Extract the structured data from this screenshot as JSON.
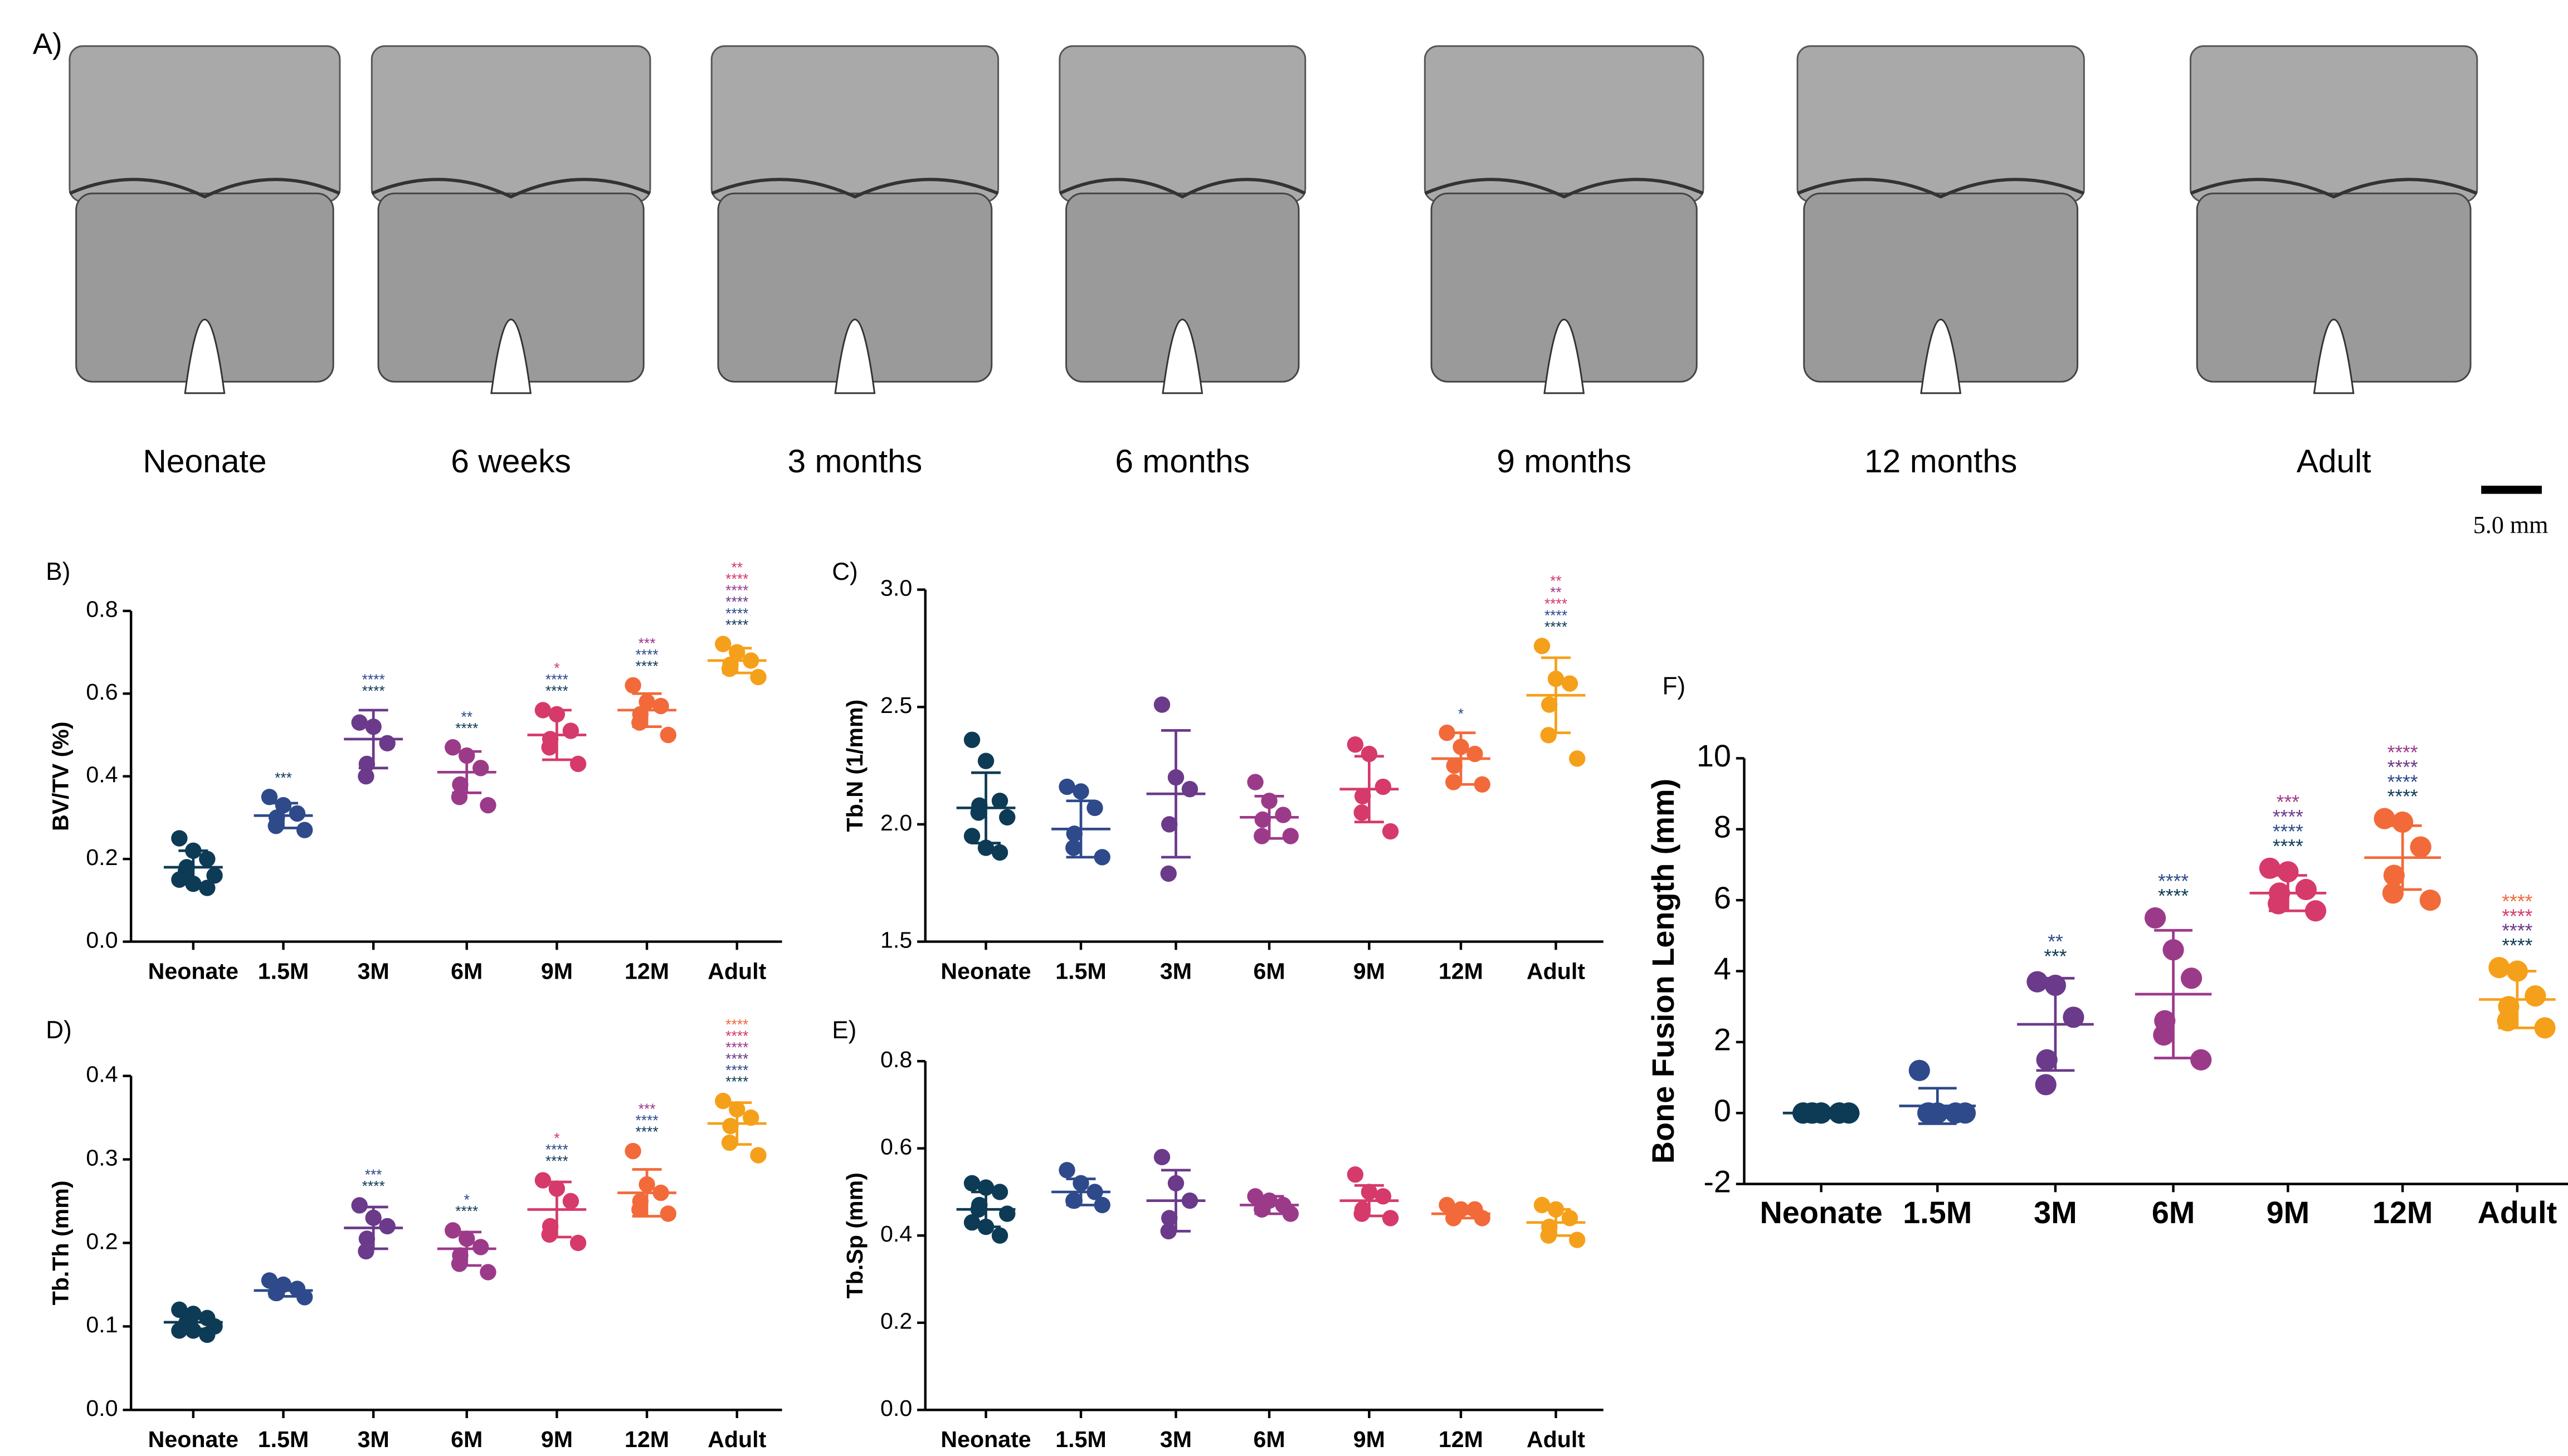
{
  "figure_a": {
    "label": "A)",
    "captions": [
      "Neonate",
      "6 weeks",
      "3 months",
      "6 months",
      "9 months",
      "12 months",
      "Adult"
    ],
    "scale_bar": "5.0 mm"
  },
  "chart_data": [
    {
      "type": "dotplot",
      "label": "B)",
      "y_label": "BV/TV (%)",
      "categories": [
        "Neonate",
        "1.5M",
        "3M",
        "6M",
        "9M",
        "12M",
        "Adult"
      ],
      "colors": [
        "#0d3b55",
        "#2e4a8a",
        "#6b3a8a",
        "#9c3a8a",
        "#d63a6a",
        "#f26a3a",
        "#f5a01a"
      ],
      "ylim": [
        0,
        0.8
      ],
      "yticks": [
        {
          "value": 0,
          "label": "0.0"
        },
        0.2,
        0.4,
        0.6,
        0.8
      ],
      "points": [
        [
          0.25,
          0.22,
          0.2,
          0.18,
          0.17,
          0.16,
          0.15,
          0.14,
          0.13
        ],
        [
          0.35,
          0.33,
          0.31,
          0.3,
          0.28,
          0.27
        ],
        [
          0.53,
          0.52,
          0.48,
          0.43,
          0.4
        ],
        [
          0.47,
          0.45,
          0.42,
          0.38,
          0.35,
          0.33
        ],
        [
          0.56,
          0.55,
          0.51,
          0.49,
          0.47,
          0.43
        ],
        [
          0.62,
          0.58,
          0.57,
          0.55,
          0.53,
          0.5
        ],
        [
          0.72,
          0.7,
          0.68,
          0.67,
          0.66,
          0.64
        ]
      ],
      "means": [
        0.18,
        0.305,
        0.49,
        0.41,
        0.5,
        0.56,
        0.68
      ],
      "sds": [
        0.04,
        0.03,
        0.07,
        0.05,
        0.06,
        0.04,
        0.03
      ],
      "annotations": [
        [],
        [
          {
            "text": "***",
            "color": "#0d3b55"
          }
        ],
        [
          {
            "text": "****",
            "color": "#2e4a8a"
          },
          {
            "text": "****",
            "color": "#0d3b55"
          }
        ],
        [
          {
            "text": "**",
            "color": "#2e4a8a"
          },
          {
            "text": "****",
            "color": "#0d3b55"
          }
        ],
        [
          {
            "text": "*",
            "color": "#d63a6a"
          },
          {
            "text": "****",
            "color": "#2e4a8a"
          },
          {
            "text": "****",
            "color": "#0d3b55"
          }
        ],
        [
          {
            "text": "***",
            "color": "#9c3a8a"
          },
          {
            "text": "****",
            "color": "#2e4a8a"
          },
          {
            "text": "****",
            "color": "#0d3b55"
          }
        ],
        [
          {
            "text": "**",
            "color": "#d63a6a"
          },
          {
            "text": "****",
            "color": "#d63a6a"
          },
          {
            "text": "****",
            "color": "#9c3a8a"
          },
          {
            "text": "****",
            "color": "#6b3a8a"
          },
          {
            "text": "****",
            "color": "#2e4a8a"
          },
          {
            "text": "****",
            "color": "#0d3b55"
          }
        ]
      ]
    },
    {
      "type": "dotplot",
      "label": "C)",
      "y_label": "Tb.N (1/mm)",
      "categories": [
        "Neonate",
        "1.5M",
        "3M",
        "6M",
        "9M",
        "12M",
        "Adult"
      ],
      "colors": [
        "#0d3b55",
        "#2e4a8a",
        "#6b3a8a",
        "#9c3a8a",
        "#d63a6a",
        "#f26a3a",
        "#f5a01a"
      ],
      "ylim": [
        1.5,
        3.0
      ],
      "yticks": [
        1.5,
        {
          "value": 2,
          "label": "2.0"
        },
        2.5,
        {
          "value": 3,
          "label": "3.0"
        }
      ],
      "points": [
        [
          2.36,
          2.27,
          2.1,
          2.08,
          2.05,
          2.03,
          1.95,
          1.9,
          1.88
        ],
        [
          2.16,
          2.14,
          2.07,
          1.96,
          1.9,
          1.86
        ],
        [
          2.51,
          2.2,
          2.15,
          2.0,
          1.79
        ],
        [
          2.18,
          2.1,
          2.04,
          2.02,
          1.95,
          1.95
        ],
        [
          2.34,
          2.3,
          2.16,
          2.12,
          2.05,
          1.97
        ],
        [
          2.39,
          2.33,
          2.3,
          2.25,
          2.18,
          2.17
        ],
        [
          2.76,
          2.62,
          2.6,
          2.51,
          2.38,
          2.28
        ]
      ],
      "means": [
        2.07,
        1.98,
        2.13,
        2.03,
        2.15,
        2.28,
        2.55
      ],
      "sds": [
        0.15,
        0.12,
        0.27,
        0.09,
        0.14,
        0.11,
        0.16
      ],
      "annotations": [
        [],
        [],
        [],
        [],
        [],
        [
          {
            "text": "*",
            "color": "#2e4a8a"
          }
        ],
        [
          {
            "text": "**",
            "color": "#d63a6a"
          },
          {
            "text": "**",
            "color": "#9c3a8a"
          },
          {
            "text": "****",
            "color": "#d63a6a"
          },
          {
            "text": "****",
            "color": "#2e4a8a"
          },
          {
            "text": "****",
            "color": "#0d3b55"
          }
        ]
      ]
    },
    {
      "type": "dotplot",
      "label": "D)",
      "y_label": "Tb.Th (mm)",
      "categories": [
        "Neonate",
        "1.5M",
        "3M",
        "6M",
        "9M",
        "12M",
        "Adult"
      ],
      "colors": [
        "#0d3b55",
        "#2e4a8a",
        "#6b3a8a",
        "#9c3a8a",
        "#d63a6a",
        "#f26a3a",
        "#f5a01a"
      ],
      "ylim": [
        0,
        0.4
      ],
      "yticks": [
        {
          "value": 0,
          "label": "0.0"
        },
        0.1,
        0.2,
        0.3,
        0.4
      ],
      "points": [
        [
          0.12,
          0.115,
          0.11,
          0.105,
          0.1,
          0.1,
          0.095,
          0.095,
          0.09
        ],
        [
          0.155,
          0.15,
          0.145,
          0.14,
          0.14,
          0.135
        ],
        [
          0.245,
          0.23,
          0.22,
          0.205,
          0.19
        ],
        [
          0.215,
          0.205,
          0.195,
          0.185,
          0.175,
          0.165
        ],
        [
          0.275,
          0.265,
          0.25,
          0.22,
          0.21,
          0.2
        ],
        [
          0.31,
          0.27,
          0.26,
          0.25,
          0.24,
          0.235
        ],
        [
          0.37,
          0.36,
          0.35,
          0.34,
          0.32,
          0.305
        ]
      ],
      "means": [
        0.105,
        0.143,
        0.218,
        0.193,
        0.24,
        0.26,
        0.343
      ],
      "sds": [
        0.008,
        0.007,
        0.025,
        0.02,
        0.033,
        0.028,
        0.025
      ],
      "annotations": [
        [],
        [],
        [
          {
            "text": "***",
            "color": "#2e4a8a"
          },
          {
            "text": "****",
            "color": "#0d3b55"
          }
        ],
        [
          {
            "text": "*",
            "color": "#2e4a8a"
          },
          {
            "text": "****",
            "color": "#0d3b55"
          }
        ],
        [
          {
            "text": "*",
            "color": "#d63a6a"
          },
          {
            "text": "****",
            "color": "#2e4a8a"
          },
          {
            "text": "****",
            "color": "#0d3b55"
          }
        ],
        [
          {
            "text": "***",
            "color": "#9c3a8a"
          },
          {
            "text": "****",
            "color": "#2e4a8a"
          },
          {
            "text": "****",
            "color": "#0d3b55"
          }
        ],
        [
          {
            "text": "****",
            "color": "#f26a3a"
          },
          {
            "text": "****",
            "color": "#d63a6a"
          },
          {
            "text": "****",
            "color": "#9c3a8a"
          },
          {
            "text": "****",
            "color": "#6b3a8a"
          },
          {
            "text": "****",
            "color": "#2e4a8a"
          },
          {
            "text": "****",
            "color": "#0d3b55"
          }
        ]
      ]
    },
    {
      "type": "dotplot",
      "label": "E)",
      "y_label": "Tb.Sp (mm)",
      "categories": [
        "Neonate",
        "1.5M",
        "3M",
        "6M",
        "9M",
        "12M",
        "Adult"
      ],
      "colors": [
        "#0d3b55",
        "#2e4a8a",
        "#6b3a8a",
        "#9c3a8a",
        "#d63a6a",
        "#f26a3a",
        "#f5a01a"
      ],
      "ylim": [
        0,
        0.8
      ],
      "yticks": [
        {
          "value": 0,
          "label": "0.0"
        },
        0.2,
        0.4,
        0.6,
        0.8
      ],
      "points": [
        [
          0.52,
          0.51,
          0.5,
          0.47,
          0.46,
          0.45,
          0.43,
          0.42,
          0.4
        ],
        [
          0.55,
          0.52,
          0.5,
          0.48,
          0.48,
          0.47
        ],
        [
          0.58,
          0.52,
          0.48,
          0.44,
          0.41
        ],
        [
          0.49,
          0.48,
          0.47,
          0.47,
          0.46,
          0.45
        ],
        [
          0.54,
          0.5,
          0.49,
          0.46,
          0.45,
          0.44
        ],
        [
          0.47,
          0.46,
          0.46,
          0.45,
          0.44,
          0.44
        ],
        [
          0.47,
          0.46,
          0.44,
          0.42,
          0.4,
          0.39
        ]
      ],
      "means": [
        0.46,
        0.5,
        0.48,
        0.47,
        0.48,
        0.45,
        0.43
      ],
      "sds": [
        0.04,
        0.03,
        0.07,
        0.02,
        0.035,
        0.01,
        0.03
      ],
      "annotations": [
        [],
        [],
        [],
        [],
        [],
        [],
        []
      ]
    },
    {
      "type": "dotplot",
      "label": "F)",
      "y_label": "Bone Fusion Length (mm)",
      "categories": [
        "Neonate",
        "1.5M",
        "3M",
        "6M",
        "9M",
        "12M",
        "Adult"
      ],
      "colors": [
        "#0d3b55",
        "#2e4a8a",
        "#6b3a8a",
        "#9c3a8a",
        "#d63a6a",
        "#f26a3a",
        "#f5a01a"
      ],
      "ylim": [
        -2,
        10
      ],
      "yticks": [
        -2,
        0,
        2,
        4,
        6,
        8,
        10
      ],
      "points": [
        [
          0,
          0,
          0,
          0,
          0,
          0,
          0,
          0,
          0
        ],
        [
          1.2,
          0,
          0,
          0,
          0,
          0
        ],
        [
          3.7,
          3.6,
          2.7,
          1.5,
          0.8
        ],
        [
          5.5,
          4.6,
          3.8,
          2.6,
          2.2,
          1.5
        ],
        [
          6.9,
          6.8,
          6.3,
          6.2,
          5.9,
          5.7
        ],
        [
          8.3,
          8.2,
          7.5,
          6.7,
          6.2,
          6.0
        ],
        [
          4.1,
          4.0,
          3.3,
          3.0,
          2.6,
          2.4
        ]
      ],
      "means": [
        0,
        0.2,
        2.5,
        3.35,
        6.2,
        7.2,
        3.2
      ],
      "sds": [
        0,
        0.5,
        1.3,
        1.8,
        0.5,
        0.9,
        0.8
      ],
      "annotations": [
        [],
        [],
        [
          {
            "text": "**",
            "color": "#2e4a8a"
          },
          {
            "text": "***",
            "color": "#0d3b55"
          }
        ],
        [
          {
            "text": "****",
            "color": "#2e4a8a"
          },
          {
            "text": "****",
            "color": "#0d3b55"
          }
        ],
        [
          {
            "text": "***",
            "color": "#9c3a8a"
          },
          {
            "text": "****",
            "color": "#6b3a8a"
          },
          {
            "text": "****",
            "color": "#2e4a8a"
          },
          {
            "text": "****",
            "color": "#0d3b55"
          }
        ],
        [
          {
            "text": "****",
            "color": "#9c3a8a"
          },
          {
            "text": "****",
            "color": "#6b3a8a"
          },
          {
            "text": "****",
            "color": "#2e4a8a"
          },
          {
            "text": "****",
            "color": "#0d3b55"
          }
        ],
        [
          {
            "text": "****",
            "color": "#f26a3a"
          },
          {
            "text": "****",
            "color": "#d63a6a"
          },
          {
            "text": "****",
            "color": "#6b3a8a"
          },
          {
            "text": "****",
            "color": "#0d3b55"
          }
        ]
      ]
    }
  ]
}
